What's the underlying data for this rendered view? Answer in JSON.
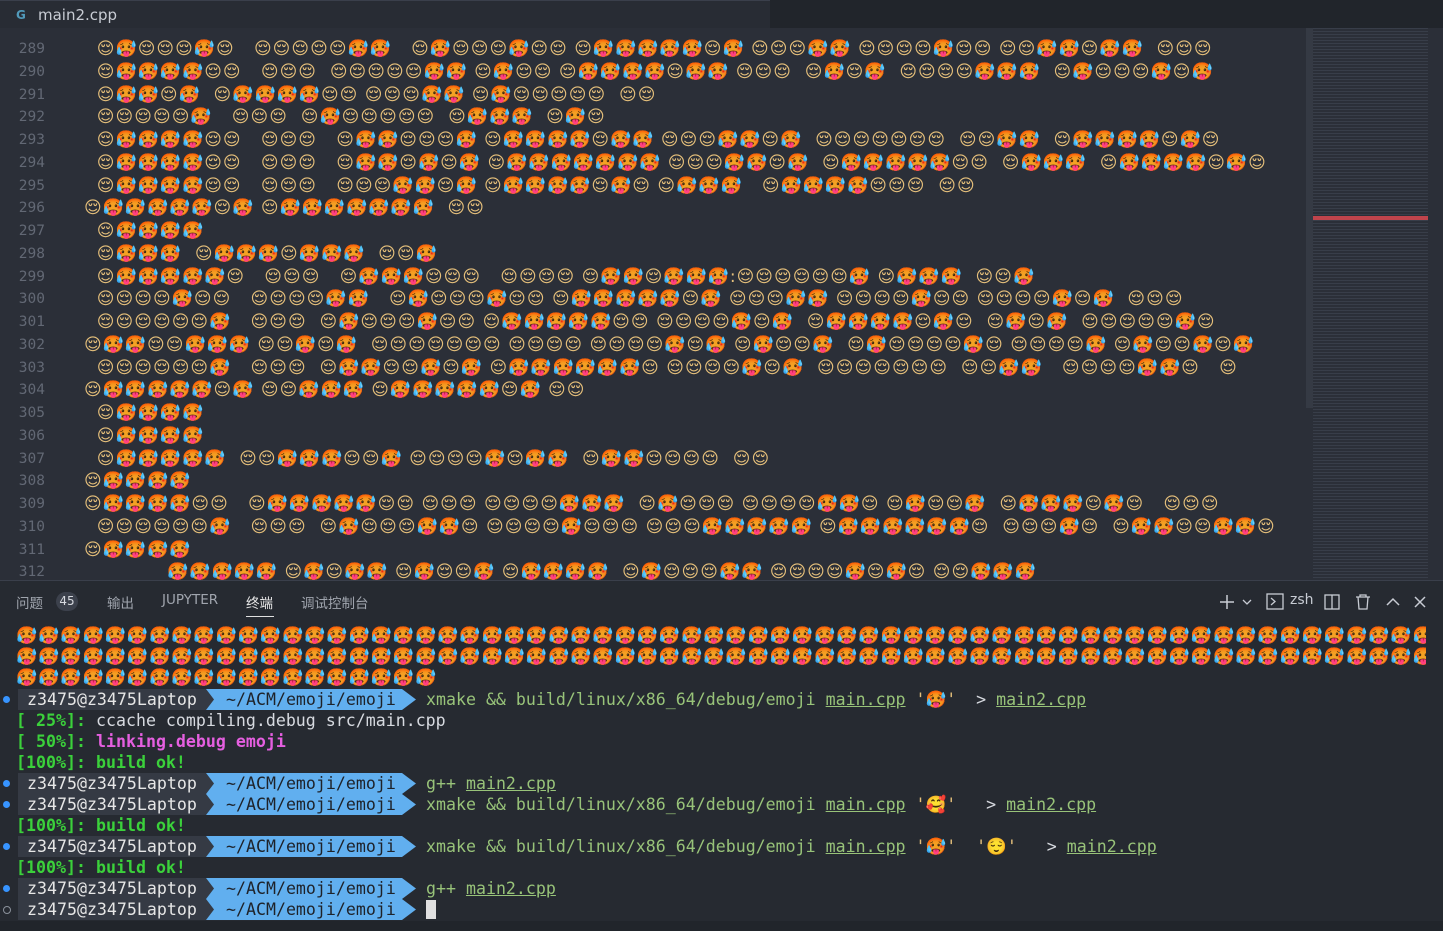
{
  "tab": {
    "title": "main2.cpp"
  },
  "editor": {
    "lines": [
      {
        "number": "289",
        "text": "  😌🥵😌😌😌🥵😌   😌😌😌😌😌🥵🥵   😌🥵😌😌😌🥵😌😌 😌🥵🥵🥵🥵🥵😌🥵 😌😌😌🥵🥵 😌😌😌😌🥵😌😌 😌😌🥵🥵😌🥵🥵  😌😌😌"
      },
      {
        "number": "290",
        "text": "  😌🥵🥵🥵🥵😌😌   😌😌😌  😌😌😌😌😌🥵🥵 😌🥵😌😌 😌🥵🥵🥵🥵😌🥵🥵 😌😌😌  😌🥵😌🥵  😌😌😌😌🥵🥵🥵  😌🥵😌😌😌🥵😌🥵"
      },
      {
        "number": "291",
        "text": "  😌🥵🥵😌🥵  😌🥵🥵🥵🥵😌😌 😌😌😌🥵🥵 😌🥵😌😌😌😌😌  😌😌"
      },
      {
        "number": "292",
        "text": "  😌😌😌😌😌🥵   😌😌😌  😌🥵😌😌😌😌😌  😌🥵🥵🥵  😌🥵😌"
      },
      {
        "number": "293",
        "text": "  😌🥵🥵🥵🥵😌😌   😌😌😌   😌🥵🥵😌😌😌🥵 😌🥵🥵🥵🥵😌🥵🥵 😌😌😌🥵🥵😌🥵  😌😌😌😌😌😌😌  😌😌🥵🥵  😌🥵🥵🥵🥵😌🥵😌"
      },
      {
        "number": "294",
        "text": "  😌🥵🥵🥵🥵😌😌   😌😌😌   😌🥵🥵😌🥵😌🥵 😌🥵🥵🥵🥵🥵🥵🥵 😌😌😌🥵🥵😌🥵  😌🥵🥵🥵🥵🥵😌😌  😌🥵🥵🥵  😌🥵🥵🥵🥵😌🥵😌"
      },
      {
        "number": "295",
        "text": "  😌🥵🥵🥵🥵😌😌   😌😌😌   😌😌😌🥵🥵😌🥵 😌🥵🥵🥵🥵😌🥵😌 😌🥵🥵🥵   😌🥵🥵🥵🥵😌😌😌  😌😌"
      },
      {
        "number": "296",
        "text": "😌🥵🥵🥵🥵🥵😌🥵 😌🥵🥵🥵🥵🥵🥵🥵  😌😌"
      },
      {
        "number": "297",
        "text": "  😌🥵🥵🥵🥵"
      },
      {
        "number": "298",
        "text": "  😌🥵🥵🥵  😌🥵🥵🥵😌🥵🥵🥵  😌😌🥵"
      },
      {
        "number": "299",
        "text": "  😌🥵🥵🥵🥵🥵😌   😌😌😌   😌🥵🥵🥵😌😌😌   😌😌😌😌 😌🥵🥵😌🥵🥵🥵:😌😌😌😌😌😌🥵 😌🥵🥵🥵  😌😌🥵"
      },
      {
        "number": "300",
        "text": "  😌😌😌😌🥵😌😌   😌😌😌😌🥵🥵   😌🥵😌😌😌🥵😌😌 😌🥵🥵🥵🥵🥵😌🥵 😌😌😌🥵🥵 😌😌😌😌🥵😌😌 😌😌😌😌🥵😌🥵  😌😌😌"
      },
      {
        "number": "301",
        "text": "  😌😌😌😌😌😌🥵   😌😌😌  😌🥵😌😌😌🥵😌😌 😌🥵🥵🥵🥵🥵😌😌 😌😌😌😌🥵😌🥵  😌🥵🥵🥵🥵😌🥵😌  😌🥵😌🥵  😌😌😌😌😌🥵😌"
      },
      {
        "number": "302",
        "text": "😌🥵🥵😌😌🥵🥵🥵 😌😌🥵😌🥵  😌😌😌😌😌😌😌 😌😌😌😌 😌😌😌😌🥵😌🥵 😌🥵😌😌🥵  😌🥵😌😌😌😌🥵😌 😌😌😌😌🥵 😌🥵😌😌🥵😌🥵"
      },
      {
        "number": "303",
        "text": "  😌😌😌😌😌😌🥵   😌😌😌  😌🥵🥵😌😌🥵😌🥵 😌🥵🥵🥵🥵🥵🥵😌 😌😌😌😌🥵😌🥵  😌😌😌😌😌😌😌  😌😌🥵🥵   😌😌😌😌🥵🥵😌   😌"
      },
      {
        "number": "304",
        "text": "😌🥵🥵🥵🥵🥵😌🥵 😌😌🥵🥵🥵 😌🥵🥵🥵🥵🥵😌🥵 😌😌"
      },
      {
        "number": "305",
        "text": "  😌🥵🥵🥵🥵"
      },
      {
        "number": "306",
        "text": "  😌🥵🥵🥵🥵"
      },
      {
        "number": "307",
        "text": "  😌🥵🥵🥵🥵🥵  😌😌🥵🥵🥵😌😌🥵 😌😌😌😌🥵😌🥵🥵  😌🥵🥵😌😌😌😌  😌😌"
      },
      {
        "number": "308",
        "text": "😌🥵🥵🥵🥵"
      },
      {
        "number": "309",
        "text": "😌🥵🥵🥵🥵😌😌   😌🥵🥵🥵🥵🥵😌😌 😌😌😌 😌😌😌😌🥵🥵🥵  😌🥵😌😌😌 😌😌😌😌🥵🥵😌 😌🥵😌😌🥵  😌🥵🥵🥵😌🥵😌   😌😌😌"
      },
      {
        "number": "310",
        "text": "  😌😌😌😌😌😌🥵   😌😌😌  😌🥵😌😌😌🥵🥵😌 😌😌😌😌🥵😌😌😌 😌😌😌🥵🥵🥵🥵🥵 😌🥵🥵🥵🥵🥵🥵😌  😌😌😌🥵😌  😌🥵🥵😌😌🥵🥵😌"
      },
      {
        "number": "311",
        "text": "😌🥵🥵🥵🥵"
      },
      {
        "number": "312",
        "text": "             🥵🥵🥵🥵🥵 😌🥵😌🥵🥵 😌🥵😌😌🥵 😌🥵🥵🥵🥵  😌🥵😌😌😌🥵🥵 😌😌😌😌🥵😌🥵😌 😌😌🥵🥵🥵"
      }
    ]
  },
  "panel": {
    "tabs": [
      "问题",
      "输出",
      "JUPYTER",
      "终端",
      "调试控制台"
    ],
    "problems_count": "45",
    "shell": "zsh"
  },
  "terminal": {
    "emoji_output": [
      "🥵🥵🥵🥵🥵🥵🥵🥵🥵🥵🥵🥵🥵🥵🥵🥵🥵🥵🥵🥵🥵🥵🥵🥵🥵🥵🥵🥵🥵🥵🥵🥵🥵🥵🥵🥵🥵🥵🥵🥵🥵🥵🥵🥵🥵🥵🥵🥵🥵🥵🥵🥵🥵🥵🥵🥵🥵🥵🥵🥵🥵🥵🥵🥵🥵🥵🥵🥵🥵🥵",
      "🥵🥵🥵🥵🥵🥵🥵🥵🥵🥵🥵🥵🥵🥵🥵🥵🥵🥵🥵🥵🥵🥵🥵🥵🥵🥵🥵🥵🥵🥵🥵🥵🥵🥵🥵🥵🥵🥵🥵🥵🥵🥵🥵🥵🥵🥵🥵🥵🥵🥵🥵🥵🥵🥵🥵🥵🥵🥵🥵🥵🥵🥵🥵🥵🥵🥵🥵🥵🥵🥵",
      "🥵🥵🥵🥵🥵🥵🥵🥵🥵🥵🥵🥵🥵🥵🥵🥵🥵🥵🥵"
    ],
    "lines": [
      {
        "user": "z3475@z3475Laptop",
        "path": "~/ACM/emoji/emoji",
        "command": [
          "xmake && build/linux/x86_64/debug/emoji ",
          "main.cpp",
          " '🥵' ",
          " > ",
          "main2.cpp"
        ]
      },
      {
        "progress": "[ 25%]:",
        "text": "ccache compiling.debug src/main.cpp"
      },
      {
        "progress": "[ 50%]:",
        "text": "linking.debug emoji"
      },
      {
        "progress": "[100%]:",
        "text": "build ok!"
      },
      {
        "user": "z3475@z3475Laptop",
        "path": "~/ACM/emoji/emoji",
        "command": [
          "g++ ",
          "main2.cpp"
        ]
      },
      {
        "user": "z3475@z3475Laptop",
        "path": "~/ACM/emoji/emoji",
        "command": [
          "xmake && build/linux/x86_64/debug/emoji ",
          "main.cpp",
          " '🥰' ",
          "  > ",
          "main2.cpp"
        ]
      },
      {
        "progress": "[100%]:",
        "text": "build ok!"
      },
      {
        "user": "z3475@z3475Laptop",
        "path": "~/ACM/emoji/emoji",
        "command": [
          "xmake && build/linux/x86_64/debug/emoji ",
          "main.cpp",
          " '🥵' ",
          " '😌' ",
          "  > ",
          "main2.cpp"
        ]
      },
      {
        "progress": "[100%]:",
        "text": "build ok!"
      },
      {
        "user": "z3475@z3475Laptop",
        "path": "~/ACM/emoji/emoji",
        "command": [
          "g++ ",
          "main2.cpp"
        ]
      },
      {
        "user": "z3475@z3475Laptop",
        "path": "~/ACM/emoji/emoji",
        "command": []
      }
    ]
  }
}
